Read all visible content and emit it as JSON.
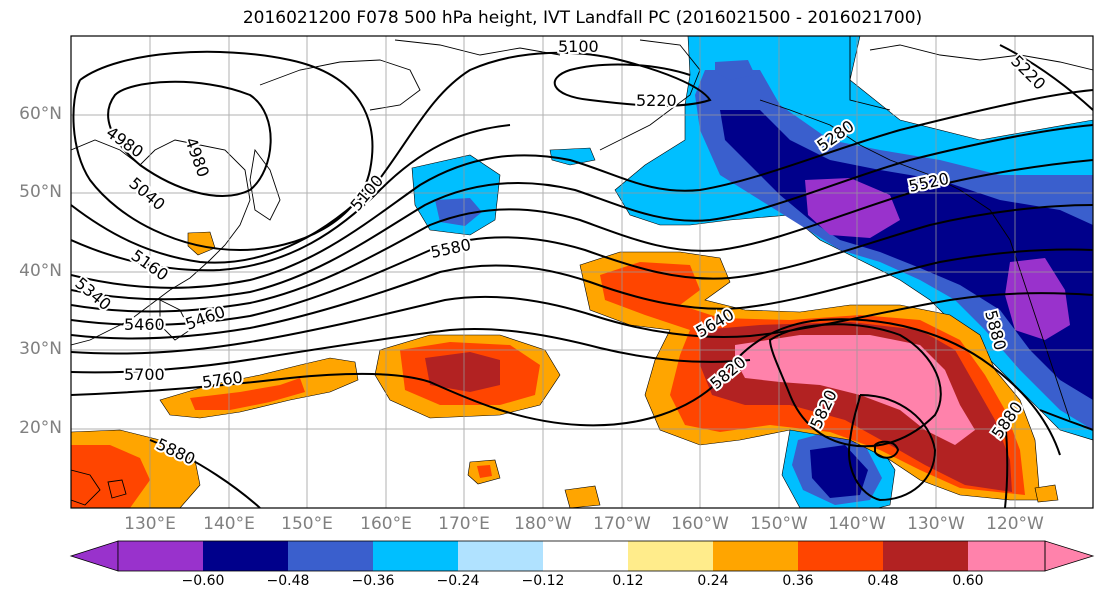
{
  "title": "2016021200 F078 500 hPa height, IVT Landfall PC (2016021500 - 2016021700)",
  "map": {
    "lat_ticks": [
      "20°N",
      "30°N",
      "40°N",
      "50°N",
      "60°N"
    ],
    "lon_ticks": [
      "130°E",
      "140°E",
      "150°E",
      "160°E",
      "170°E",
      "180°W",
      "170°W",
      "160°W",
      "150°W",
      "140°W",
      "130°W",
      "120°W"
    ],
    "contour_labels": [
      "5100",
      "5220",
      "5220",
      "4980",
      "4980",
      "5040",
      "5100",
      "5160",
      "5340",
      "5460",
      "5460",
      "5580",
      "5280",
      "5520",
      "5640",
      "5700",
      "5760",
      "5820",
      "5820",
      "5880",
      "5880",
      "5880"
    ]
  },
  "colorbar": {
    "ticks": [
      "−0.60",
      "−0.48",
      "−0.36",
      "−0.24",
      "−0.12",
      "0.12",
      "0.24",
      "0.36",
      "0.48",
      "0.60"
    ],
    "colors": [
      "#9932CC",
      "#00008B",
      "#3A5FCD",
      "#00BFFF",
      "#B0E2FF",
      "#FFFFFF",
      "#FFEC8B",
      "#FFA500",
      "#FF4500",
      "#B22222",
      "#FF82AB"
    ]
  }
}
